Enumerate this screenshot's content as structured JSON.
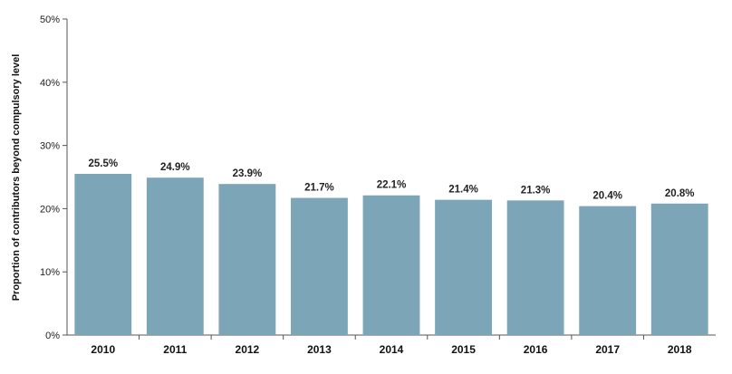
{
  "chart_data": {
    "type": "bar",
    "title": "",
    "xlabel": "",
    "ylabel": "Proportion of contributors beyond compulsory level",
    "categories": [
      "2010",
      "2011",
      "2012",
      "2013",
      "2014",
      "2015",
      "2016",
      "2017",
      "2018"
    ],
    "values": [
      25.5,
      24.9,
      23.9,
      21.7,
      22.1,
      21.4,
      21.3,
      20.4,
      20.8
    ],
    "data_labels": [
      "25.5%",
      "24.9%",
      "23.9%",
      "21.7%",
      "22.1%",
      "21.4%",
      "21.3%",
      "20.4%",
      "20.8%"
    ],
    "ylim": [
      0,
      50
    ],
    "yticks": [
      0,
      10,
      20,
      30,
      40,
      50
    ],
    "ytick_labels": [
      "0%",
      "10%",
      "20%",
      "30%",
      "40%",
      "50%"
    ],
    "grid": false,
    "legend": "none",
    "colors": {
      "bar": "#7ca5b8",
      "axis": "#555555",
      "text": "#222222"
    }
  }
}
